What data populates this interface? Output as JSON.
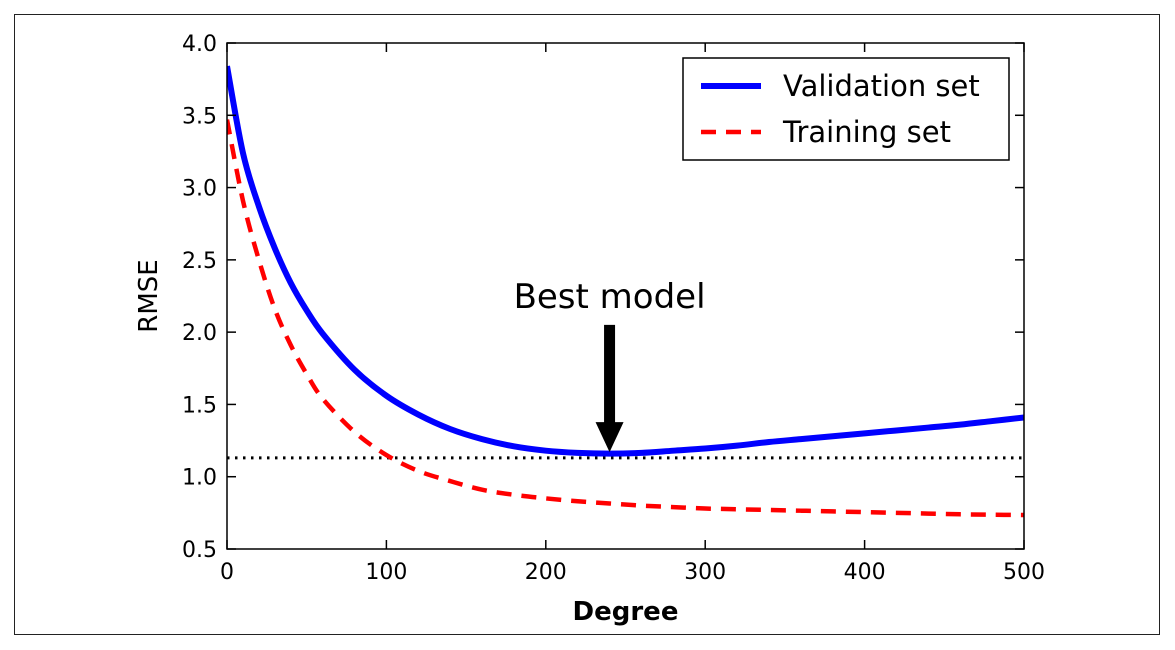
{
  "chart_data": {
    "type": "line",
    "xlabel": "Degree",
    "ylabel": "RMSE",
    "xlim": [
      0,
      500
    ],
    "ylim": [
      0.5,
      4.0
    ],
    "xticks": [
      "0",
      "100",
      "200",
      "300",
      "400",
      "500"
    ],
    "yticks": [
      "0.5",
      "1.0",
      "1.5",
      "2.0",
      "2.5",
      "3.0",
      "3.5",
      "4.0"
    ],
    "grid": false,
    "legend_position": "top-right",
    "series": [
      {
        "name": "Validation set",
        "style": "solid",
        "color": "#0000ff",
        "x": [
          0,
          10,
          20,
          30,
          40,
          50,
          60,
          80,
          100,
          120,
          140,
          160,
          180,
          200,
          220,
          240,
          260,
          280,
          300,
          320,
          340,
          360,
          380,
          400,
          420,
          440,
          460,
          480,
          500
        ],
        "y": [
          3.84,
          3.24,
          2.87,
          2.58,
          2.34,
          2.15,
          1.99,
          1.74,
          1.56,
          1.43,
          1.33,
          1.26,
          1.21,
          1.18,
          1.165,
          1.16,
          1.165,
          1.18,
          1.195,
          1.215,
          1.24,
          1.26,
          1.28,
          1.3,
          1.32,
          1.34,
          1.36,
          1.385,
          1.41
        ]
      },
      {
        "name": "Training set",
        "style": "dashed",
        "color": "#ff0000",
        "x": [
          0,
          10,
          20,
          30,
          40,
          50,
          60,
          80,
          100,
          120,
          140,
          160,
          180,
          200,
          220,
          240,
          260,
          280,
          300,
          320,
          340,
          360,
          380,
          400,
          420,
          440,
          460,
          480,
          500
        ],
        "y": [
          3.47,
          2.91,
          2.5,
          2.16,
          1.91,
          1.71,
          1.54,
          1.31,
          1.15,
          1.04,
          0.97,
          0.91,
          0.875,
          0.85,
          0.83,
          0.815,
          0.8,
          0.79,
          0.78,
          0.775,
          0.77,
          0.765,
          0.76,
          0.755,
          0.75,
          0.745,
          0.74,
          0.737,
          0.735
        ]
      }
    ],
    "reference_line": {
      "y": 1.13,
      "style": "dotted",
      "color": "#000000"
    },
    "annotation": {
      "text": "Best model",
      "arrow_x": 240,
      "arrow_from_y": 2.05,
      "arrow_to_y": 1.17,
      "color": "#000000"
    }
  }
}
